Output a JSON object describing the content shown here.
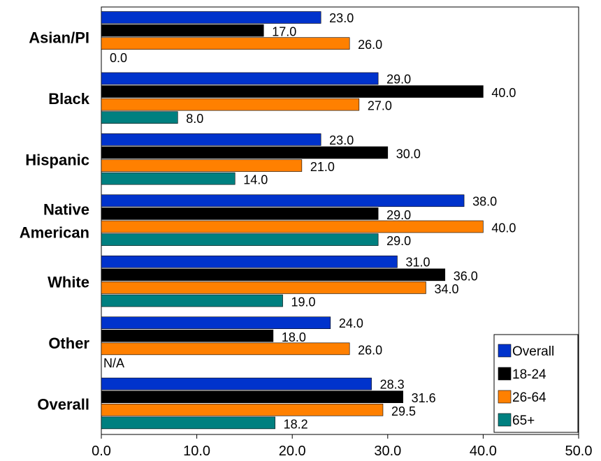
{
  "chart_data": {
    "type": "bar",
    "orientation": "horizontal",
    "categories": [
      "Asian/PI",
      "Black",
      "Hispanic",
      "Native American",
      "White",
      "Other",
      "Overall"
    ],
    "series": [
      {
        "name": "Overall",
        "color": "#0033CC",
        "values": [
          23.0,
          29.0,
          23.0,
          38.0,
          31.0,
          24.0,
          28.3
        ],
        "labels": [
          "23.0",
          "29.0",
          "23.0",
          "38.0",
          "31.0",
          "24.0",
          "28.3"
        ]
      },
      {
        "name": "18-24",
        "color": "#000000",
        "values": [
          17.0,
          40.0,
          30.0,
          29.0,
          36.0,
          18.0,
          31.6
        ],
        "labels": [
          "17.0",
          "40.0",
          "30.0",
          "29.0",
          "36.0",
          "18.0",
          "31.6"
        ]
      },
      {
        "name": "26-64",
        "color": "#FF8000",
        "values": [
          26.0,
          27.0,
          21.0,
          40.0,
          34.0,
          26.0,
          29.5
        ],
        "labels": [
          "26.0",
          "27.0",
          "21.0",
          "40.0",
          "34.0",
          "26.0",
          "29.5"
        ]
      },
      {
        "name": "65+",
        "color": "#008080",
        "values": [
          0.0,
          8.0,
          14.0,
          29.0,
          19.0,
          null,
          18.2
        ],
        "labels": [
          "0.0",
          "8.0",
          "14.0",
          "29.0",
          "19.0",
          "N/A",
          "18.2"
        ]
      }
    ],
    "xlim": [
      0,
      50
    ],
    "ticks": [
      "0.0",
      "10.0",
      "20.0",
      "30.0",
      "40.0",
      "50.0"
    ],
    "grid": false,
    "legend_position": "bottom-right"
  }
}
